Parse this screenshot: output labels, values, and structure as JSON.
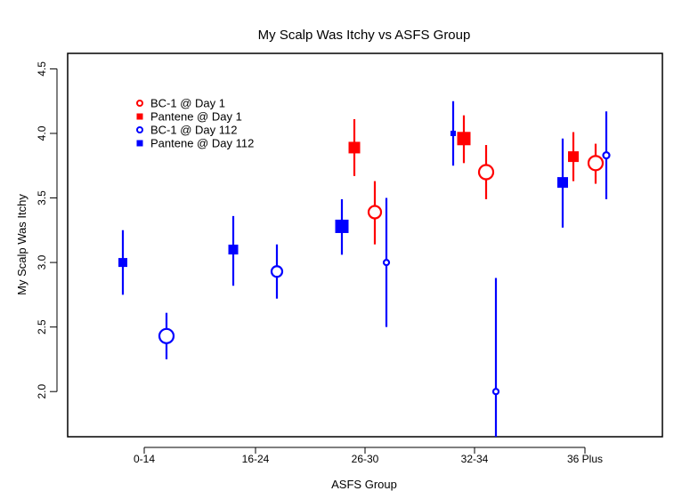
{
  "chart_data": {
    "type": "scatter",
    "title": "My Scalp Was Itchy vs ASFS Group",
    "xlabel": "ASFS Group",
    "ylabel": "My Scalp Was Itchy",
    "categories": [
      "0-14",
      "16-24",
      "26-30",
      "32-34",
      "36 Plus"
    ],
    "ylim": [
      1.65,
      4.62
    ],
    "y_ticks": [
      "2.0",
      "2.5",
      "3.0",
      "3.5",
      "4.0",
      "4.5"
    ],
    "grid": false,
    "legend_position": "top-left",
    "series": [
      {
        "name": "BC-1 @ Day 1",
        "color": "#ff0000",
        "marker": "open-circle",
        "points": [
          {
            "category": "26-30",
            "y": 3.39,
            "low": 3.14,
            "high": 3.63
          },
          {
            "category": "32-34",
            "y": 3.7,
            "low": 3.49,
            "high": 3.91
          },
          {
            "category": "36 Plus",
            "y": 3.77,
            "low": 3.61,
            "high": 3.92
          }
        ]
      },
      {
        "name": "Pantene @ Day 1",
        "color": "#ff0000",
        "marker": "filled-square",
        "points": [
          {
            "category": "26-30",
            "y": 3.89,
            "low": 3.67,
            "high": 4.11
          },
          {
            "category": "32-34",
            "y": 3.96,
            "low": 3.77,
            "high": 4.14
          },
          {
            "category": "36 Plus",
            "y": 3.82,
            "low": 3.63,
            "high": 4.01
          }
        ]
      },
      {
        "name": "BC-1 @ Day 112",
        "color": "#0000ff",
        "marker": "open-circle",
        "points": [
          {
            "category": "0-14",
            "y": 2.43,
            "low": 2.25,
            "high": 2.61
          },
          {
            "category": "16-24",
            "y": 2.93,
            "low": 2.72,
            "high": 3.14
          },
          {
            "category": "26-30",
            "y": 3.0,
            "low": 2.5,
            "high": 3.5
          },
          {
            "category": "32-34",
            "y": 2.0,
            "low": 1.65,
            "high": 2.88
          },
          {
            "category": "36 Plus",
            "y": 3.83,
            "low": 3.49,
            "high": 4.17
          }
        ]
      },
      {
        "name": "Pantene @ Day 112",
        "color": "#0000ff",
        "marker": "filled-square",
        "points": [
          {
            "category": "0-14",
            "y": 3.0,
            "low": 2.75,
            "high": 3.25
          },
          {
            "category": "16-24",
            "y": 3.1,
            "low": 2.82,
            "high": 3.36
          },
          {
            "category": "26-30",
            "y": 3.28,
            "low": 3.06,
            "high": 3.49
          },
          {
            "category": "32-34",
            "y": 4.0,
            "low": 3.75,
            "high": 4.25
          },
          {
            "category": "36 Plus",
            "y": 3.62,
            "low": 3.27,
            "high": 3.96
          }
        ]
      }
    ]
  }
}
